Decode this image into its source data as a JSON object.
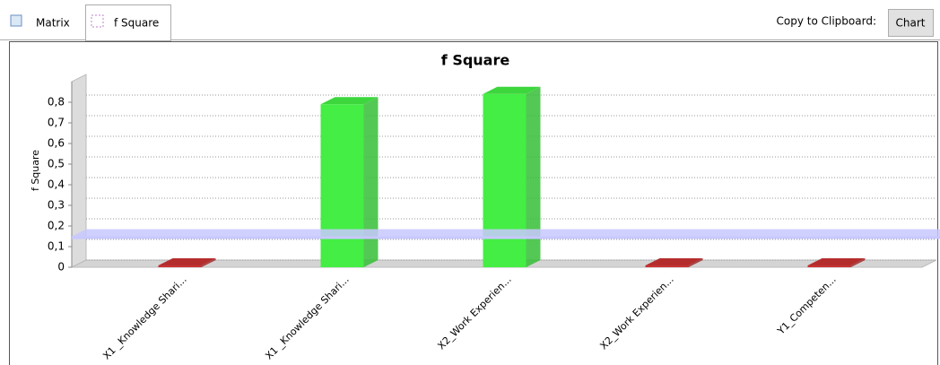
{
  "tabs": [
    "Matrix",
    "f Square"
  ],
  "toolbar": {
    "label": "Copy to Clipboard:",
    "button": "Chart"
  },
  "chart_data": {
    "type": "bar3d",
    "title": "f Square",
    "y_label": "f Square",
    "categories": [
      "X1 _Knowledge Shari...",
      "X1 _Knowledge Shari...",
      "X2_Work Experien...",
      "X2_Work Experien...",
      "Y1_Competen..."
    ],
    "values": [
      0.005,
      0.79,
      0.84,
      0.004,
      0.003
    ],
    "colors": [
      "#c83232",
      "#44ee44",
      "#44ee44",
      "#c83232",
      "#c83232"
    ],
    "reference_line": 0.15,
    "reference_color": "#c8c8ff",
    "ylim": [
      0,
      0.9
    ],
    "yticks": [
      0,
      {
        "value": 0.1,
        "label": "0,1"
      },
      {
        "value": 0.2,
        "label": "0,2"
      },
      {
        "value": 0.3,
        "label": "0,3"
      },
      {
        "value": 0.4,
        "label": "0,4"
      },
      {
        "value": 0.5,
        "label": "0,5"
      },
      {
        "value": 0.6,
        "label": "0,6"
      },
      {
        "value": 0.7,
        "label": "0,7"
      },
      {
        "value": 0.8,
        "label": "0,8"
      }
    ],
    "grid": true
  }
}
